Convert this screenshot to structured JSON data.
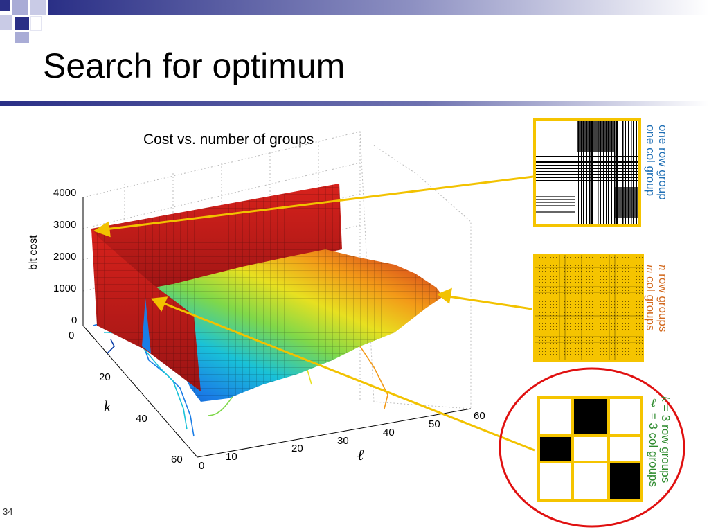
{
  "slide": {
    "title": "Search for optimum",
    "number": "34"
  },
  "plot": {
    "title": "Cost vs. number of groups",
    "ylabel": "bit cost",
    "k_label": "k",
    "l_label": "ℓ",
    "z_ticks": [
      "4000",
      "3000",
      "2000",
      "1000",
      "0"
    ],
    "k_ticks": [
      "0",
      "20",
      "40",
      "60"
    ],
    "l_ticks": [
      "0",
      "10",
      "20",
      "30",
      "40",
      "50",
      "60"
    ]
  },
  "panels": [
    {
      "line1": "one row group",
      "line2": "one col group",
      "color": "#1f6fb5"
    },
    {
      "line1_var": "n",
      "line1_text": " row groups",
      "line2_var": "m",
      "line2_text": " col groups",
      "color": "#d2691e"
    },
    {
      "line1_var": "k",
      "line1_text": " = 3 row groups",
      "line2_var": "ℓ",
      "line2_text": " = 3 col groups",
      "color": "#2e8b2e"
    }
  ],
  "colors": {
    "header_bar": "#2a2f86",
    "arrow": "#f2c200",
    "panel_border": "#f5c400",
    "highlight_ellipse": "#e01010"
  }
}
